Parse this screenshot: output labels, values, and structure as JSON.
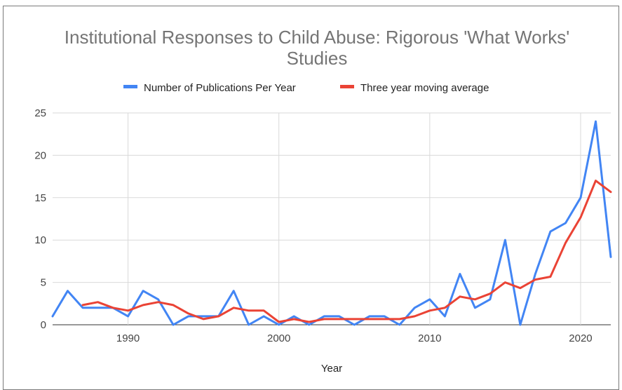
{
  "chart_data": {
    "type": "line",
    "title_line1": "Institutional Responses to Child Abuse: Rigorous 'What Works'",
    "title_line2": "Studies",
    "xlabel": "Year",
    "ylabel": "",
    "xlim": [
      1985,
      2022
    ],
    "ylim": [
      0,
      25
    ],
    "x_ticks": [
      1990,
      2000,
      2010,
      2020
    ],
    "y_ticks": [
      0,
      5,
      10,
      15,
      20,
      25
    ],
    "grid": true,
    "legend_position": "top",
    "series": [
      {
        "name": "Number of Publications Per Year",
        "color": "#4285f4",
        "x": [
          1985,
          1986,
          1987,
          1988,
          1989,
          1990,
          1991,
          1992,
          1993,
          1994,
          1995,
          1996,
          1997,
          1998,
          1999,
          2000,
          2001,
          2002,
          2003,
          2004,
          2005,
          2006,
          2007,
          2008,
          2009,
          2010,
          2011,
          2012,
          2013,
          2014,
          2015,
          2016,
          2017,
          2018,
          2019,
          2020,
          2021,
          2022
        ],
        "values": [
          1,
          4,
          2,
          2,
          2,
          1,
          4,
          3,
          0,
          1,
          1,
          1,
          4,
          0,
          1,
          0,
          1,
          0,
          1,
          1,
          0,
          1,
          1,
          0,
          2,
          3,
          1,
          6,
          2,
          3,
          10,
          0,
          6,
          11,
          12,
          15,
          24,
          8
        ]
      },
      {
        "name": "Three year moving average",
        "color": "#ea4335",
        "x": [
          1987,
          1988,
          1989,
          1990,
          1991,
          1992,
          1993,
          1994,
          1995,
          1996,
          1997,
          1998,
          1999,
          2000,
          2001,
          2002,
          2003,
          2004,
          2005,
          2006,
          2007,
          2008,
          2009,
          2010,
          2011,
          2012,
          2013,
          2014,
          2015,
          2016,
          2017,
          2018,
          2019,
          2020,
          2021,
          2022
        ],
        "values": [
          2.33,
          2.67,
          2,
          1.67,
          2.33,
          2.67,
          2.33,
          1.33,
          0.67,
          1,
          2,
          1.67,
          1.67,
          0.33,
          0.67,
          0.33,
          0.67,
          0.67,
          0.67,
          0.67,
          0.67,
          0.67,
          1,
          1.67,
          2,
          3.33,
          3,
          3.67,
          5,
          4.33,
          5.33,
          5.67,
          9.67,
          12.67,
          17,
          15.67
        ]
      }
    ]
  }
}
